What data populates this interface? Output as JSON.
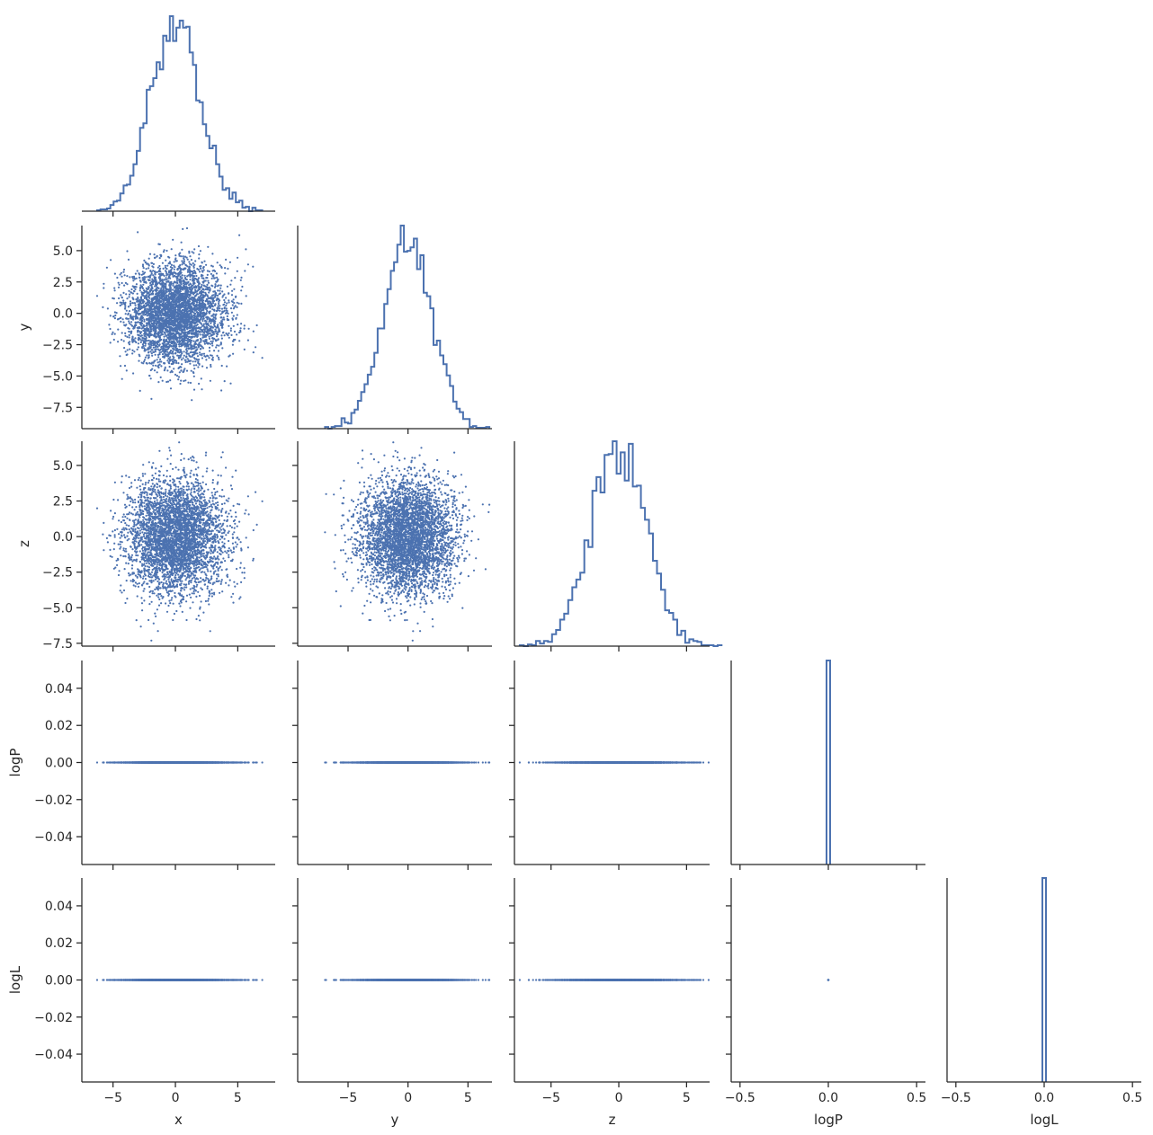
{
  "chart_data": {
    "type": "scatter",
    "layout": "corner-pairplot",
    "variables": [
      "x",
      "y",
      "z",
      "logP",
      "logL"
    ],
    "color": "#4c72b0",
    "axis_color": "#262626",
    "diagonal_type": "step-histogram",
    "offdiagonal_type": "scatter",
    "grid": false,
    "samples": 4000,
    "distributions": {
      "x": {
        "kind": "normal",
        "mean": 0.0,
        "std": 2.0
      },
      "y": {
        "kind": "normal",
        "mean": 0.0,
        "std": 2.0
      },
      "z": {
        "kind": "normal",
        "mean": 0.0,
        "std": 2.0
      },
      "logP": {
        "kind": "constant",
        "value": 0.0
      },
      "logL": {
        "kind": "constant",
        "value": 0.0
      }
    },
    "axes": {
      "x": {
        "range": [
          -7.5,
          8.0
        ],
        "ticks": [
          -5,
          0,
          5
        ],
        "tick_labels": [
          "−5",
          "0",
          "5"
        ]
      },
      "y": {
        "range": [
          -9.2,
          7.0
        ],
        "ticks": [
          -7.5,
          -5.0,
          -2.5,
          0.0,
          2.5,
          5.0
        ],
        "tick_labels": [
          "−7.5",
          "−5.0",
          "−2.5",
          "0.0",
          "2.5",
          "5.0"
        ],
        "x_ticks": [
          -5,
          0,
          5
        ],
        "x_tick_labels": [
          "−5",
          "0",
          "5"
        ]
      },
      "z": {
        "range": [
          -7.7,
          6.7
        ],
        "ticks": [
          -7.5,
          -5.0,
          -2.5,
          0.0,
          2.5,
          5.0
        ],
        "tick_labels": [
          "−7.5",
          "−5.0",
          "−2.5",
          "0.0",
          "2.5",
          "5.0"
        ],
        "x_ticks": [
          -5,
          0,
          5
        ],
        "x_tick_labels": [
          "−5",
          "0",
          "5"
        ]
      },
      "logP": {
        "range": [
          -0.055,
          0.055
        ],
        "ticks": [
          -0.04,
          -0.02,
          0.0,
          0.02,
          0.04
        ],
        "tick_labels": [
          "−0.04",
          "−0.02",
          "0.00",
          "0.02",
          "0.04"
        ],
        "x_range": [
          -0.55,
          0.55
        ],
        "x_ticks": [
          -0.5,
          0.0,
          0.5
        ],
        "x_tick_labels": [
          "−0.5",
          "0.0",
          "0.5"
        ]
      },
      "logL": {
        "range": [
          -0.055,
          0.055
        ],
        "ticks": [
          -0.04,
          -0.02,
          0.0,
          0.02,
          0.04
        ],
        "tick_labels": [
          "−0.04",
          "−0.02",
          "0.00",
          "0.02",
          "0.04"
        ],
        "x_range": [
          -0.55,
          0.55
        ],
        "x_ticks": [
          -0.5,
          0.0,
          0.5
        ],
        "x_tick_labels": [
          "−0.5",
          "0.0",
          "0.5"
        ]
      }
    },
    "xlabels": [
      "x",
      "y",
      "z",
      "logP",
      "logL"
    ],
    "ylabels": [
      "",
      "y",
      "z",
      "logP",
      "logL"
    ]
  }
}
